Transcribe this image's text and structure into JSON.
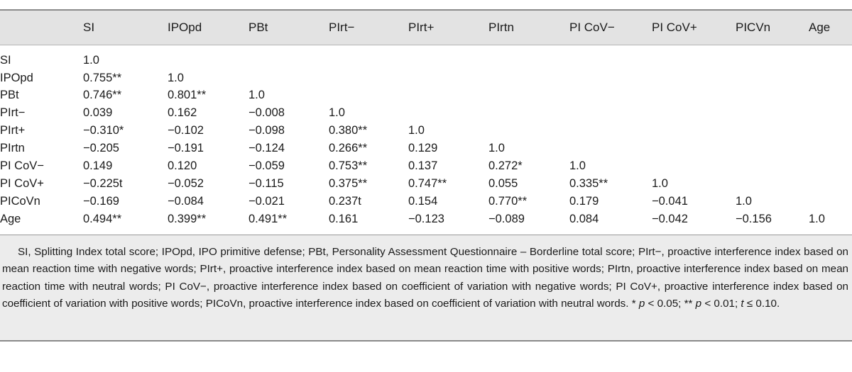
{
  "columns": [
    "SI",
    "IPOpd",
    "PBt",
    "PIrt−",
    "PIrt+",
    "PIrtn",
    "PI CoV−",
    "PI CoV+",
    "PICVn",
    "Age"
  ],
  "rows": [
    {
      "label": "SI",
      "values": [
        "1.0"
      ]
    },
    {
      "label": "IPOpd",
      "values": [
        "0.755**",
        "1.0"
      ]
    },
    {
      "label": "PBt",
      "values": [
        "0.746**",
        "0.801**",
        "1.0"
      ]
    },
    {
      "label": "PIrt−",
      "values": [
        "0.039",
        "0.162",
        "−0.008",
        "1.0"
      ]
    },
    {
      "label": "PIrt+",
      "values": [
        "−0.310*",
        "−0.102",
        "−0.098",
        "0.380**",
        "1.0"
      ]
    },
    {
      "label": "PIrtn",
      "values": [
        "−0.205",
        "−0.191",
        "−0.124",
        "0.266**",
        "0.129",
        "1.0"
      ]
    },
    {
      "label": "PI CoV−",
      "values": [
        "0.149",
        "0.120",
        "−0.059",
        "0.753**",
        "0.137",
        "0.272*",
        "1.0"
      ]
    },
    {
      "label": "PI CoV+",
      "values": [
        "−0.225t",
        "−0.052",
        "−0.115",
        "0.375**",
        "0.747**",
        "0.055",
        "0.335**",
        "1.0"
      ]
    },
    {
      "label": "PICoVn",
      "values": [
        "−0.169",
        "−0.084",
        "−0.021",
        "0.237t",
        "0.154",
        "0.770**",
        "0.179",
        "−0.041",
        "1.0"
      ]
    },
    {
      "label": "Age",
      "values": [
        "0.494**",
        "0.399**",
        "0.491**",
        "0.161",
        "−0.123",
        "−0.089",
        "0.084",
        "−0.042",
        "−0.156",
        "1.0"
      ]
    }
  ],
  "footnote": {
    "definitions": "SI, Splitting Index total score; IPOpd, IPO primitive defense; PBt, Personality Assessment Questionnaire – Borderline total score; PIrt−, proactive interference index based on mean reaction time with negative words; PIrt+, proactive interference index based on mean reaction time with positive words; PIrtn, proactive interference index based on mean reaction time with neutral words; PI CoV−, proactive interference index based on coefficient of variation with negative words; PI CoV+, proactive interference index based on coefficient of variation with positive words; PICoVn, proactive interference index based on coefficient of variation with neutral words.",
    "sig1_prefix": " * ",
    "sig1_var": "p",
    "sig1_rest": " < 0.05; ** ",
    "sig2_var": "p",
    "sig2_rest": " < 0.01; ",
    "sig3_var": "t",
    "sig3_rest": " ≤ 0.10."
  }
}
